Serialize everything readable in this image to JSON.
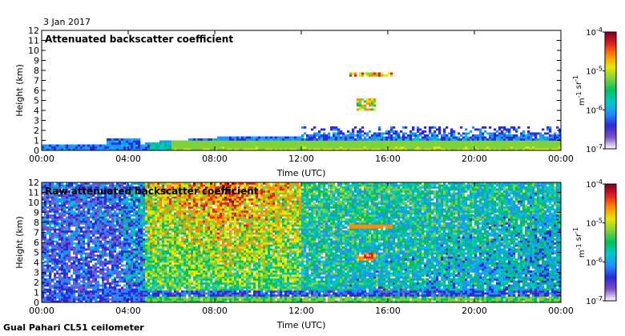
{
  "date_label": "3 Jan 2017",
  "footer_label": "Gual Pahari CL51 ceilometer",
  "colors": {
    "scale": [
      "#ffffff",
      "#7b4fc4",
      "#2a2ad8",
      "#1e90ff",
      "#00c8c8",
      "#00c060",
      "#7fd23c",
      "#e6e600",
      "#ff8c00",
      "#e02020",
      "#7a0020"
    ]
  },
  "chart_data": [
    {
      "type": "heatmap",
      "title": "Attenuated backscatter coefficient",
      "xlabel": "Time (UTC)",
      "ylabel": "Height (km)",
      "x_ticks": [
        "00:00",
        "04:00",
        "08:00",
        "12:00",
        "16:00",
        "20:00",
        "00:00"
      ],
      "y_ticks": [
        "0",
        "1",
        "2",
        "3",
        "4",
        "5",
        "6",
        "7",
        "8",
        "9",
        "10",
        "11",
        "12"
      ],
      "ylim": [
        0,
        12
      ],
      "xlim_hours": [
        0,
        24
      ],
      "colorbar": {
        "scale": "log",
        "label": "m-1 sr-1",
        "tick_labels": [
          "10-7",
          "10-6",
          "10-5",
          "10-4"
        ],
        "range": [
          1e-07,
          0.0001
        ]
      },
      "features": [
        {
          "name": "boundary layer",
          "t_start_h": 0,
          "t_end_h": 24,
          "top_km": 2.2
        },
        {
          "name": "cloud layer",
          "t_start_h": 14.2,
          "t_end_h": 16.2,
          "height_km": 7.6
        },
        {
          "name": "virga",
          "t_start_h": 14.6,
          "t_end_h": 15.4,
          "height_km": 4.6
        }
      ]
    },
    {
      "type": "heatmap",
      "title": "Raw attenuated backscatter coefficient",
      "xlabel": "Time (UTC)",
      "ylabel": "Height (km)",
      "x_ticks": [
        "00:00",
        "04:00",
        "08:00",
        "12:00",
        "16:00",
        "20:00",
        "00:00"
      ],
      "y_ticks": [
        "0",
        "1",
        "2",
        "3",
        "4",
        "5",
        "6",
        "7",
        "8",
        "9",
        "10",
        "11",
        "12"
      ],
      "ylim": [
        0,
        12
      ],
      "xlim_hours": [
        0,
        24
      ],
      "colorbar": {
        "scale": "log",
        "label": "m-1 sr-1",
        "tick_labels": [
          "10-7",
          "10-6",
          "10-5",
          "10-4"
        ],
        "range": [
          1e-07,
          0.0001
        ]
      },
      "features": [
        {
          "name": "noisy daytime background",
          "t_start_h": 4.8,
          "t_end_h": 12,
          "level": "high"
        },
        {
          "name": "cloud layer",
          "t_start_h": 14.2,
          "t_end_h": 16.2,
          "height_km": 7.6
        },
        {
          "name": "virga",
          "t_start_h": 14.6,
          "t_end_h": 15.4,
          "height_km": 4.6
        }
      ]
    }
  ]
}
